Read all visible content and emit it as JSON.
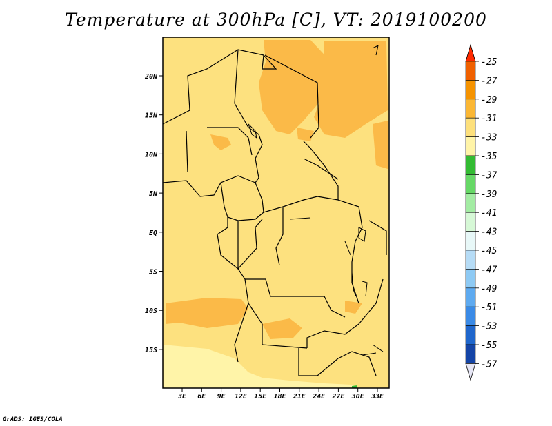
{
  "title": "Temperature at 300hPa [C], VT: 2019100200",
  "credit": "GrADS: IGES/COLA",
  "map": {
    "lat_labels": [
      "20N",
      "15N",
      "10N",
      "5N",
      "EQ",
      "5S",
      "10S",
      "15S"
    ],
    "lon_labels": [
      "3E",
      "6E",
      "9E",
      "12E",
      "15E",
      "18E",
      "21E",
      "24E",
      "27E",
      "30E",
      "33E"
    ],
    "background_color": "#fde17f",
    "warm_patch_color": "#fbba48",
    "cool_patch_color": "#fff4a8",
    "boundary_color": "#000000"
  },
  "colorbar": {
    "labels": [
      "-25",
      "-27",
      "-29",
      "-31",
      "-33",
      "-35",
      "-37",
      "-39",
      "-41",
      "-43",
      "-45",
      "-47",
      "-49",
      "-51",
      "-53",
      "-55",
      "-57"
    ],
    "colors": [
      "#f06000",
      "#f59300",
      "#fbb734",
      "#fde07c",
      "#fff4a8",
      "#33bb33",
      "#66d866",
      "#a3eca3",
      "#d6f8d6",
      "#e8f8f8",
      "#b6dcf6",
      "#8ecaf4",
      "#5eaaf0",
      "#3a8ae6",
      "#1f66cc",
      "#1444a6",
      "#0a1e7a"
    ],
    "top_arrow_color": "#ff2a00",
    "bottom_arrow_color": "#e6e6f5"
  }
}
